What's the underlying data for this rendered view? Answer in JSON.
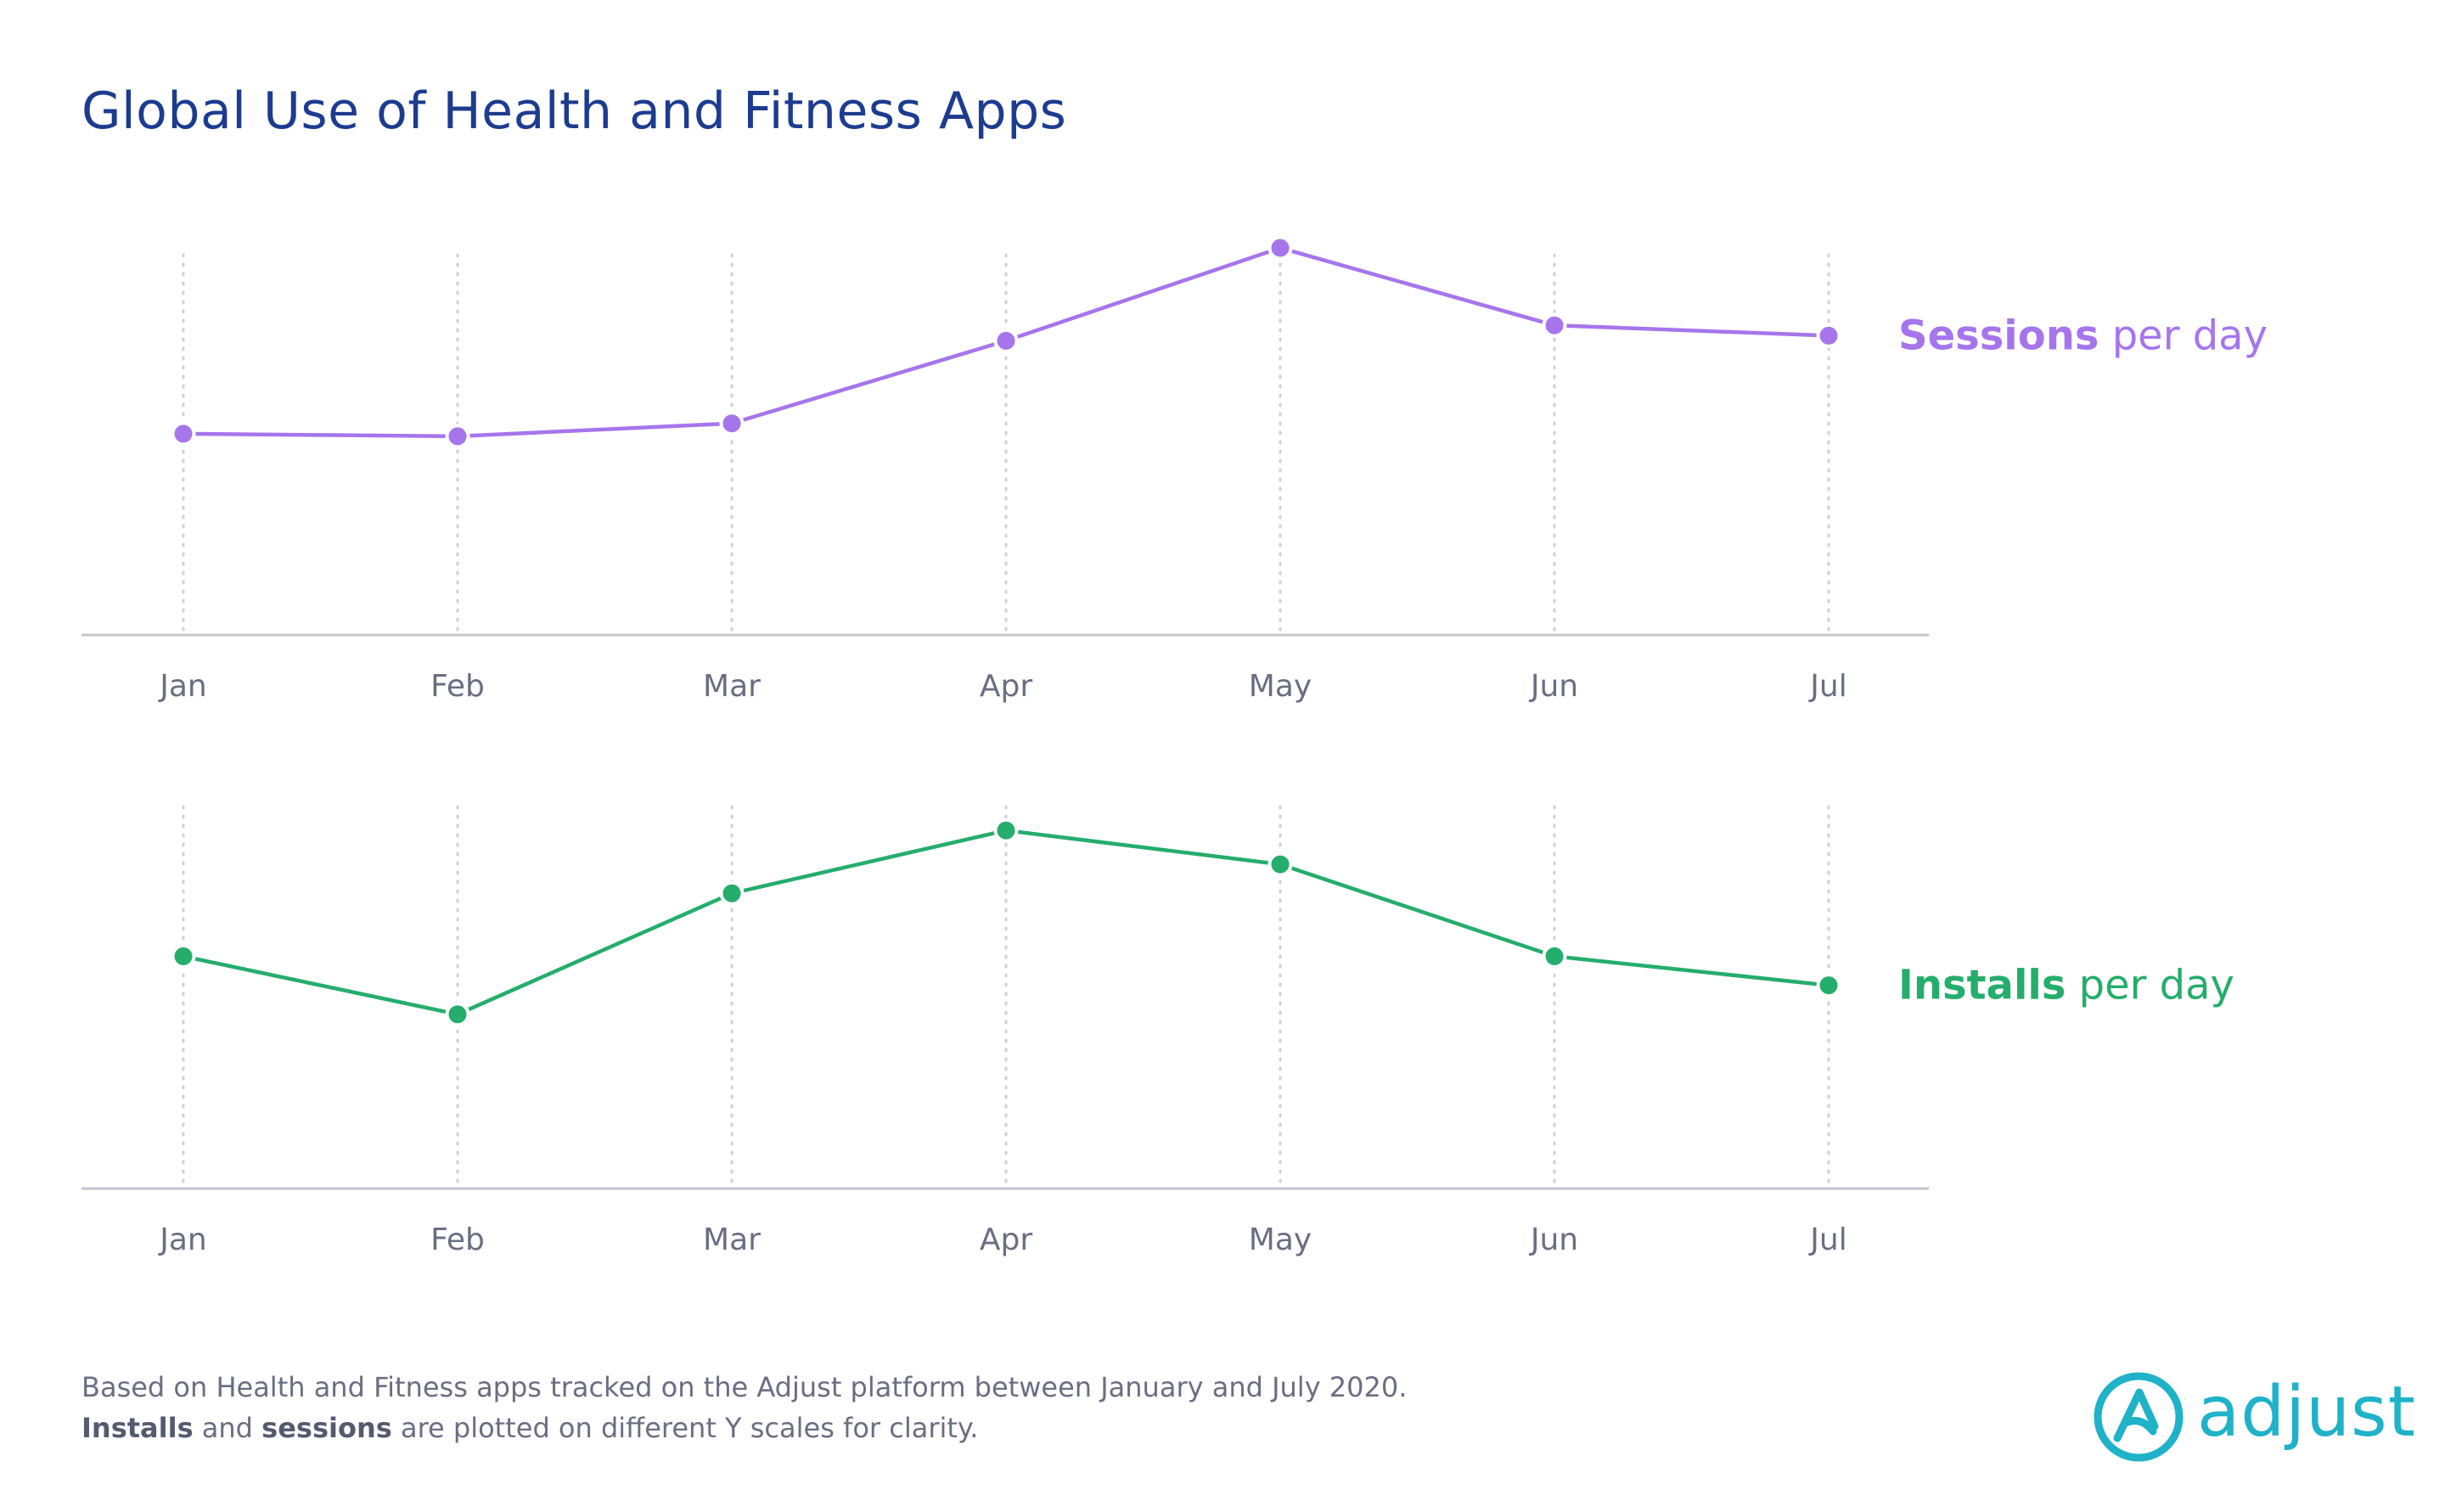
{
  "title": "Global Use of Health and Fitness Apps",
  "colors": {
    "title": "#1d3b8f",
    "sessions": "#a675ec",
    "installs": "#25ad6c",
    "axis_text": "#6a6e82",
    "grid": "#d0d0d8",
    "baseline": "#c4c4cc",
    "logo": "#1fb2c9"
  },
  "chart_data": [
    {
      "type": "line",
      "categories": [
        "Jan",
        "Feb",
        "Mar",
        "Apr",
        "May",
        "Jun",
        "Jul"
      ],
      "series": [
        {
          "name": "Sessions per day",
          "values": [
            39,
            38.5,
            41,
            57,
            75,
            60,
            58
          ]
        }
      ],
      "label_bold": "Sessions",
      "label_rest": " per day",
      "ylim": [
        0,
        100
      ],
      "y_axis_labels": false,
      "grid": "vertical dotted"
    },
    {
      "type": "line",
      "categories": [
        "Jan",
        "Feb",
        "Mar",
        "Apr",
        "May",
        "Jun",
        "Jul"
      ],
      "series": [
        {
          "name": "Installs per day",
          "values": [
            48,
            36,
            61,
            74,
            67,
            48,
            42
          ]
        }
      ],
      "label_bold": "Installs",
      "label_rest": " per day",
      "ylim": [
        0,
        100
      ],
      "y_axis_labels": false,
      "grid": "vertical dotted"
    }
  ],
  "footnote": {
    "line1": "Based on Health and Fitness apps tracked on the Adjust platform between January and July 2020.",
    "line2_bold1": "Installs",
    "line2_mid": " and ",
    "line2_bold2": "sessions",
    "line2_rest": " are plotted on different Y scales for clarity."
  },
  "logo": {
    "text": "adjust",
    "icon": "adjust-logo-icon"
  }
}
